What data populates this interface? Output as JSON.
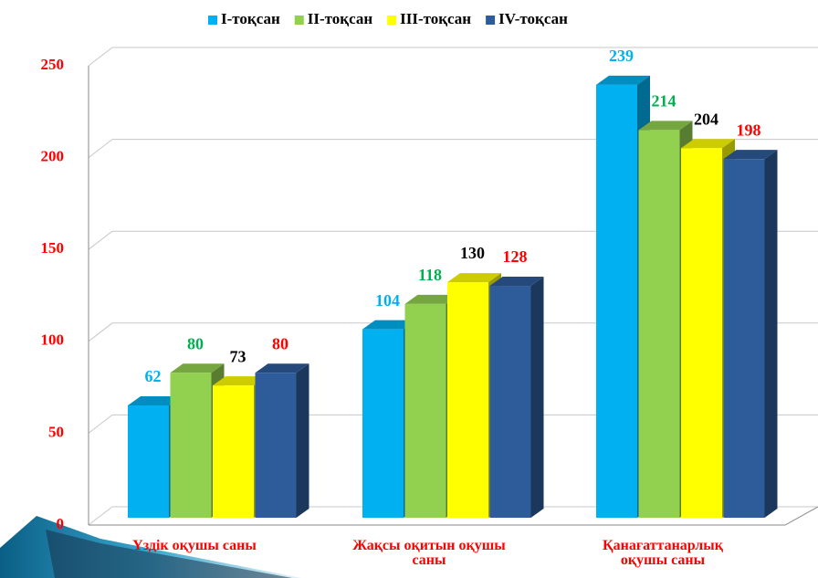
{
  "chart_data": {
    "type": "bar3d",
    "categories": [
      "Үздік оқушы саны",
      "Жақсы оқитын оқушы саны",
      "Қанағаттанарлық оқушы саны"
    ],
    "series": [
      {
        "name": "I-тоқсан",
        "color": "#00b0f0",
        "label_color": "#00b0f0",
        "values": [
          62,
          104,
          239
        ]
      },
      {
        "name": "II-тоқсан",
        "color": "#92d050",
        "label_color": "#00b050",
        "values": [
          80,
          118,
          214
        ]
      },
      {
        "name": "III-тоқсан",
        "color": "#ffff00",
        "label_color": "#000000",
        "values": [
          73,
          130,
          204
        ]
      },
      {
        "name": "IV-тоқсан",
        "color": "#2e5b9a",
        "label_color": "#ff0000",
        "values": [
          80,
          128,
          198
        ]
      }
    ],
    "ylim": [
      0,
      250
    ],
    "yticks": [
      0,
      50,
      100,
      150,
      200,
      250
    ],
    "grid": true,
    "tick_color": "#ff0000",
    "category_color": "#ff0000",
    "legend": "top"
  }
}
